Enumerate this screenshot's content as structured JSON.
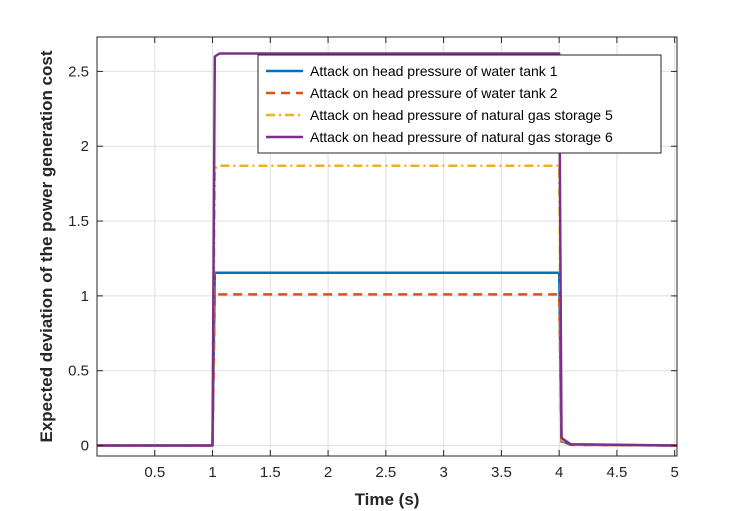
{
  "chart_data": {
    "type": "line",
    "title": "",
    "xlabel": "Time (s)",
    "ylabel": "Expected deviation of the power generation cost",
    "xlim": [
      0,
      5.02
    ],
    "ylim": [
      -0.07,
      2.73
    ],
    "grid": true,
    "legend_position": "top-right",
    "x_ticks": [
      0.5,
      1,
      1.5,
      2,
      2.5,
      3,
      3.5,
      4,
      4.5,
      5
    ],
    "x_tick_labels": [
      "0.5",
      "1",
      "1.5",
      "2",
      "2.5",
      "3",
      "3.5",
      "4",
      "4.5",
      "5"
    ],
    "y_ticks": [
      0,
      0.5,
      1,
      1.5,
      2,
      2.5
    ],
    "y_tick_labels": [
      "0",
      "0.5",
      "1",
      "1.5",
      "2",
      "2.5"
    ],
    "series": [
      {
        "name": "Attack on head pressure of water tank 1",
        "color": "#0072BD",
        "dash": "solid",
        "x": [
          0,
          1.0,
          1.02,
          4.0,
          4.02,
          4.1,
          5.02
        ],
        "y": [
          0,
          0,
          1.155,
          1.155,
          0.03,
          0.005,
          0
        ]
      },
      {
        "name": "Attack on head pressure of water tank 2",
        "color": "#D95319",
        "dash": "dashed",
        "x": [
          0,
          1.0,
          1.02,
          4.0,
          4.02,
          4.1,
          5.02
        ],
        "y": [
          0,
          0,
          1.01,
          1.01,
          0.025,
          0.004,
          0
        ]
      },
      {
        "name": "Attack on head pressure of natural gas storage 5",
        "color": "#EDB120",
        "dash": "dashdot",
        "x": [
          0,
          1.0,
          1.02,
          1.05,
          4.0,
          4.02,
          4.1,
          5.02
        ],
        "y": [
          0,
          0,
          1.85,
          1.87,
          1.87,
          0.04,
          0.006,
          0
        ]
      },
      {
        "name": "Attack on head pressure of natural gas storage 6",
        "color": "#7E2F8E",
        "dash": "solid",
        "x": [
          0,
          1.0,
          1.02,
          1.06,
          4.0,
          4.02,
          4.1,
          5.02
        ],
        "y": [
          0,
          0,
          2.6,
          2.62,
          2.62,
          0.05,
          0.008,
          0
        ]
      }
    ]
  }
}
